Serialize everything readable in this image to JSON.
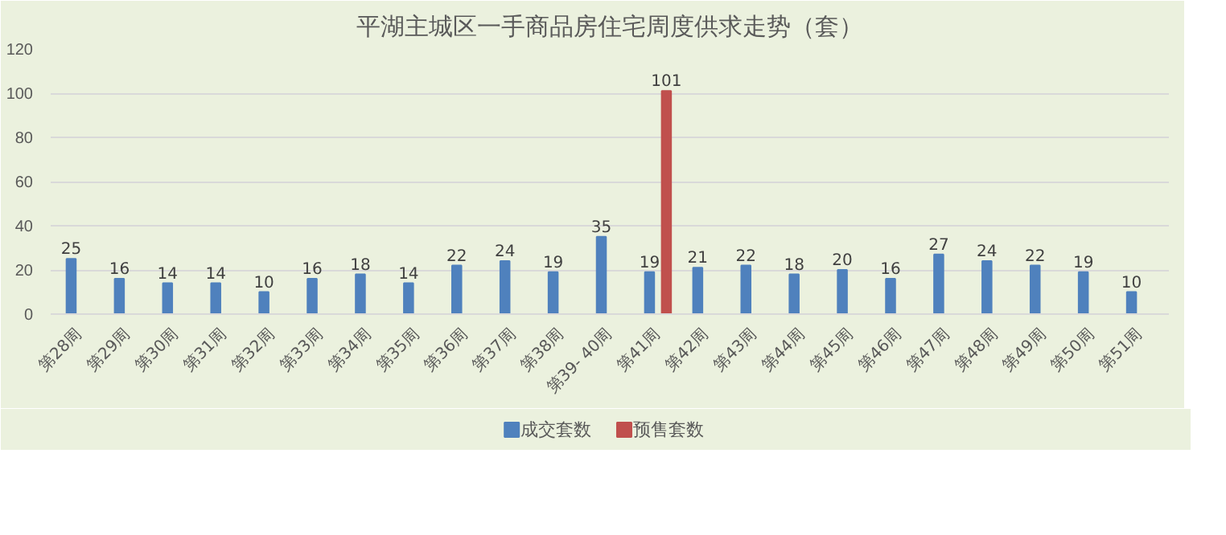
{
  "chart_data": {
    "type": "bar",
    "title": "平湖主城区一手商品房住宅周度供求走势（套）",
    "categories": [
      "第28周",
      "第29周",
      "第30周",
      "第31周",
      "第32周",
      "第33周",
      "第34周",
      "第35周",
      "第36周",
      "第37周",
      "第38周",
      "第39- 40周",
      "第41周",
      "第42周",
      "第43周",
      "第44周",
      "第45周",
      "第46周",
      "第47周",
      "第48周",
      "第49周",
      "第50周",
      "第51周"
    ],
    "series": [
      {
        "name": "成交套数",
        "color": "#4f81bd",
        "values": [
          25,
          16,
          14,
          14,
          10,
          16,
          18,
          14,
          22,
          24,
          19,
          35,
          19,
          21,
          22,
          18,
          20,
          16,
          27,
          24,
          22,
          19,
          10
        ]
      },
      {
        "name": "预售套数",
        "color": "#c0504d",
        "values": [
          null,
          null,
          null,
          null,
          null,
          null,
          null,
          null,
          null,
          null,
          null,
          null,
          101,
          null,
          null,
          null,
          null,
          null,
          null,
          null,
          null,
          null,
          null
        ]
      }
    ],
    "ylim": [
      0,
      120
    ],
    "yticks": [
      0,
      20,
      40,
      60,
      80,
      100,
      120
    ],
    "grid": "y",
    "legend": "bottom",
    "data_labels": true
  }
}
